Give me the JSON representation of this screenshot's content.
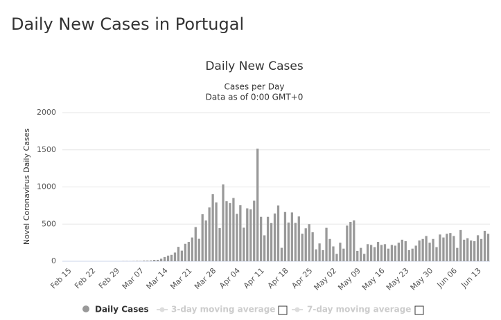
{
  "page_title": "Daily New Cases in Portugal",
  "chart_data": {
    "type": "bar",
    "title": "Daily New Cases",
    "subtitle": [
      "Cases per Day",
      "Data as of 0:00 GMT+0"
    ],
    "y_label": "Novel Coronavirus Daily Cases",
    "categories": [
      "Feb 15",
      null,
      null,
      null,
      null,
      null,
      null,
      "Feb 22",
      null,
      null,
      null,
      null,
      null,
      null,
      "Feb 29",
      null,
      null,
      null,
      null,
      null,
      null,
      "Mar 07",
      null,
      null,
      null,
      null,
      null,
      null,
      "Mar 14",
      null,
      null,
      null,
      null,
      null,
      null,
      "Mar 21",
      null,
      null,
      null,
      null,
      null,
      null,
      "Mar 28",
      null,
      null,
      null,
      null,
      null,
      null,
      "Apr 04",
      null,
      null,
      null,
      null,
      null,
      null,
      "Apr 11",
      null,
      null,
      null,
      null,
      null,
      null,
      "Apr 18",
      null,
      null,
      null,
      null,
      null,
      null,
      "Apr 25",
      null,
      null,
      null,
      null,
      null,
      null,
      "May 02",
      null,
      null,
      null,
      null,
      null,
      null,
      "May 09",
      null,
      null,
      null,
      null,
      null,
      null,
      "May 16",
      null,
      null,
      null,
      null,
      null,
      null,
      "May 23",
      null,
      null,
      null,
      null,
      null,
      null,
      "May 30",
      null,
      null,
      null,
      null,
      null,
      null,
      "Jun 06",
      null,
      null,
      null,
      null,
      null,
      null,
      "Jun 13",
      null,
      null,
      null
    ],
    "series": [
      {
        "name": "Daily Cases",
        "color": "#999999",
        "values": [
          0,
          0,
          0,
          0,
          0,
          0,
          0,
          0,
          0,
          0,
          0,
          0,
          0,
          0,
          0,
          0,
          2,
          2,
          1,
          3,
          5,
          4,
          9,
          9,
          11,
          18,
          19,
          34,
          57,
          76,
          86,
          117,
          194,
          143,
          235,
          260,
          320,
          460,
          302,
          633,
          549,
          724,
          902,
          792,
          446,
          1035,
          808,
          783,
          852,
          638,
          754,
          452,
          712,
          699,
          815,
          1516,
          598,
          349,
          598,
          514,
          643,
          750,
          181,
          663,
          521,
          657,
          516,
          603,
          371,
          444,
          500,
          390,
          160,
          240,
          150,
          450,
          300,
          200,
          100,
          250,
          170,
          480,
          530,
          550,
          140,
          180,
          100,
          230,
          220,
          190,
          260,
          220,
          230,
          170,
          220,
          210,
          250,
          290,
          270,
          150,
          170,
          210,
          280,
          300,
          340,
          250,
          300,
          190,
          360,
          320,
          370,
          380,
          340,
          180,
          420,
          290,
          310,
          280,
          270,
          350,
          300,
          410,
          370
        ]
      }
    ],
    "hidden_series": [
      "3-day moving average",
      "7-day moving average"
    ],
    "ylim": [
      0,
      2000
    ],
    "yticks": [
      0,
      500,
      1000,
      1500,
      2000
    ],
    "grid": true
  }
}
